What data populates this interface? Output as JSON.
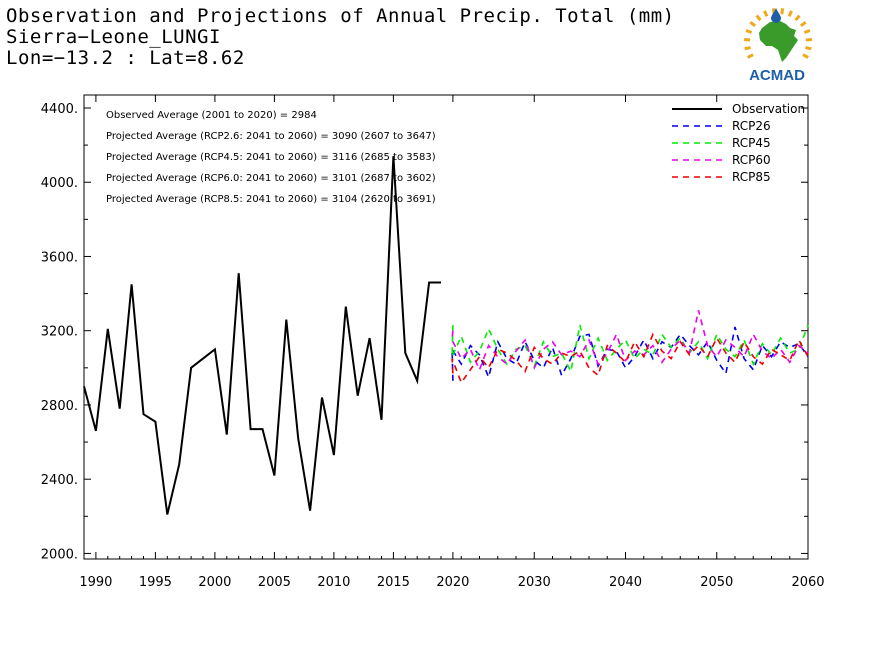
{
  "header": {
    "title": "Observation and Projections of Annual Precip. Total (mm)",
    "station": "Sierra−Leone_LUNGI",
    "coords": "Lon=−13.2 : Lat=8.62"
  },
  "logo": {
    "text": "ACMAD"
  },
  "colors": {
    "observation": "#000000",
    "RCP26": "#0000ee",
    "RCP45": "#00ee00",
    "RCP60": "#ee00ee",
    "RCP85": "#ee0000",
    "logo_text": "#1f5fa8",
    "logo_map": "#3a9a2a",
    "logo_rays": "#f0a818"
  },
  "annotations": [
    "Observed Average (2001 to 2020) = 2984",
    "Projected Average (RCP2.6: 2041 to 2060) = 3090 (2607 to 3647)",
    "Projected Average (RCP4.5: 2041 to 2060) = 3116 (2685 to 3583)",
    "Projected Average (RCP6.0: 2041 to 2060) = 3101 (2687 to 3602)",
    "Projected Average (RCP8.5: 2041 to 2060) = 3104 (2620 to 3691)"
  ],
  "chart_data": {
    "type": "line",
    "title": "Observation and Projections of Annual Precip. Total (mm)",
    "xlabel": "",
    "ylabel": "",
    "ylim": [
      1970,
      4470
    ],
    "y_ticks": [
      2000,
      2400,
      2800,
      3200,
      3600,
      4000,
      4400
    ],
    "y_tick_labels": [
      "2000.",
      "2400.",
      "2800.",
      "3200.",
      "3600.",
      "4000.",
      "4400."
    ],
    "x_ticks_obs": [
      1990,
      1995,
      2000,
      2005,
      2010,
      2015,
      2020
    ],
    "x_ticks_proj": [
      2030,
      2040,
      2050,
      2060
    ],
    "x_tick_labels_obs": [
      "1990",
      "1995",
      "2000",
      "2005",
      "2010",
      "2015",
      "2020"
    ],
    "x_tick_labels_proj": [
      "2030",
      "2040",
      "2050",
      "2060"
    ],
    "legend_position": "top-right",
    "legend": [
      "Observation",
      "RCP26",
      "RCP45",
      "RCP60",
      "RCP85"
    ],
    "series": [
      {
        "name": "Observation",
        "style": "solid",
        "x": [
          1989,
          1990,
          1991,
          1992,
          1993,
          1994,
          1995,
          1996,
          1997,
          1998,
          1999,
          2000,
          2001,
          2002,
          2003,
          2004,
          2005,
          2006,
          2007,
          2008,
          2009,
          2010,
          2011,
          2012,
          2013,
          2014,
          2015,
          2016,
          2017,
          2018,
          2019
        ],
        "values": [
          2900,
          2660,
          3210,
          2780,
          3450,
          2750,
          2710,
          2210,
          2480,
          3000,
          3050,
          3100,
          2640,
          3510,
          2670,
          2670,
          2420,
          3260,
          2620,
          2230,
          2840,
          2530,
          3330,
          2850,
          3160,
          2720,
          4140,
          3080,
          2930,
          3460,
          3460
        ]
      },
      {
        "name": "RCP26",
        "style": "dashed",
        "x": [
          2020,
          2021,
          2022,
          2023,
          2024,
          2025,
          2026,
          2027,
          2028,
          2029,
          2030,
          2031,
          2032,
          2033,
          2034,
          2035,
          2036,
          2037,
          2038,
          2039,
          2040,
          2041,
          2042,
          2043,
          2044,
          2045,
          2046,
          2047,
          2048,
          2049,
          2050,
          2051,
          2052,
          2053,
          2054,
          2055,
          2056,
          2057,
          2058,
          2059,
          2060
        ],
        "values": [
          2930,
          3100,
          3020,
          3120,
          3070,
          2950,
          3140,
          3050,
          3020,
          3140,
          3040,
          3000,
          3110,
          2960,
          3050,
          3170,
          3180,
          3010,
          3100,
          3090,
          3000,
          3060,
          3150,
          3050,
          3140,
          3110,
          3180,
          3120,
          3070,
          3140,
          3040,
          2970,
          3220,
          3050,
          2990,
          3120,
          3060,
          3140,
          3110,
          3130,
          3060
        ]
      },
      {
        "name": "RCP45",
        "style": "dashed",
        "x": [
          2020,
          2021,
          2022,
          2023,
          2024,
          2025,
          2026,
          2027,
          2028,
          2029,
          2030,
          2031,
          2032,
          2033,
          2034,
          2035,
          2036,
          2037,
          2038,
          2039,
          2040,
          2041,
          2042,
          2043,
          2044,
          2045,
          2046,
          2047,
          2048,
          2049,
          2050,
          2051,
          2052,
          2053,
          2054,
          2055,
          2056,
          2057,
          2058,
          2059,
          2060
        ],
        "values": [
          3230,
          3060,
          3170,
          3030,
          3090,
          3210,
          3100,
          3020,
          3100,
          3120,
          3010,
          3140,
          3060,
          3080,
          2980,
          3230,
          3050,
          3160,
          3040,
          3100,
          3150,
          3050,
          3100,
          3070,
          3180,
          3110,
          3160,
          3080,
          3140,
          3050,
          3180,
          3100,
          3060,
          3150,
          3020,
          3130,
          3070,
          3160,
          3080,
          3100,
          3230
        ]
      },
      {
        "name": "RCP60",
        "style": "dashed",
        "x": [
          2020,
          2021,
          2022,
          2023,
          2024,
          2025,
          2026,
          2027,
          2028,
          2029,
          2030,
          2031,
          2032,
          2033,
          2034,
          2035,
          2036,
          2037,
          2038,
          2039,
          2040,
          2041,
          2042,
          2043,
          2044,
          2045,
          2046,
          2047,
          2048,
          2049,
          2050,
          2051,
          2052,
          2053,
          2054,
          2055,
          2056,
          2057,
          2058,
          2059,
          2060
        ],
        "values": [
          3200,
          3150,
          3050,
          3100,
          2990,
          3120,
          3060,
          3020,
          3090,
          3150,
          3000,
          3100,
          3140,
          3070,
          3090,
          3060,
          3150,
          3020,
          3080,
          3180,
          3040,
          3090,
          3070,
          3120,
          3030,
          3100,
          3150,
          3080,
          3310,
          3120,
          3060,
          3150,
          3110,
          3060,
          3180,
          3090,
          3050,
          3100,
          3030,
          3120,
          3080
        ]
      },
      {
        "name": "RCP85",
        "style": "dashed",
        "x": [
          2020,
          2021,
          2022,
          2023,
          2024,
          2025,
          2026,
          2027,
          2028,
          2029,
          2030,
          2031,
          2032,
          2033,
          2034,
          2035,
          2036,
          2037,
          2038,
          2039,
          2040,
          2041,
          2042,
          2043,
          2044,
          2045,
          2046,
          2047,
          2048,
          2049,
          2050,
          2051,
          2052,
          2053,
          2054,
          2055,
          2056,
          2057,
          2058,
          2059,
          2060
        ],
        "values": [
          2970,
          3050,
          2920,
          2990,
          3060,
          3000,
          3100,
          3080,
          3040,
          2980,
          3110,
          3050,
          3020,
          3080,
          3060,
          3090,
          3000,
          2960,
          3120,
          3080,
          3030,
          3140,
          3060,
          3180,
          3090,
          3050,
          3140,
          3070,
          3120,
          3060,
          3160,
          3080,
          3030,
          3140,
          3060,
          3020,
          3100,
          3070,
          3040,
          3150,
          3060
        ]
      }
    ]
  }
}
